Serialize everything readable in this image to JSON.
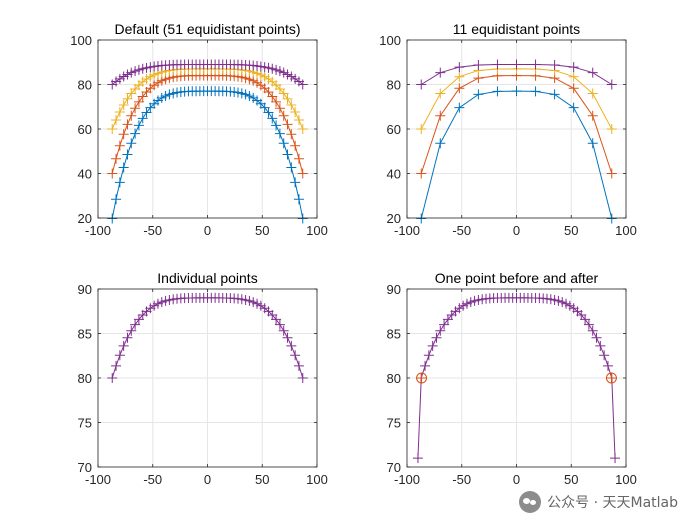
{
  "colors": {
    "blue": "#0072BD",
    "red": "#D95319",
    "yellow": "#EDB120",
    "purple": "#7E2F8E"
  },
  "watermark": {
    "icon": "wechat-icon",
    "text": "公众号 · 天天Matlab"
  },
  "chart_data": [
    {
      "type": "line",
      "title": "Default (51 equidistant points)",
      "xlim": [
        -100,
        100
      ],
      "ylim": [
        20,
        100
      ],
      "xticks": [
        -100,
        -50,
        0,
        50,
        100
      ],
      "yticks": [
        20,
        40,
        60,
        80,
        100
      ],
      "grid": true,
      "marker": "+",
      "curves": [
        {
          "color_key": "blue",
          "peak": 77,
          "bottom": 19.8,
          "halfwidth": 87,
          "points": 51
        },
        {
          "color_key": "red",
          "peak": 84,
          "bottom": 40,
          "halfwidth": 87,
          "points": 51
        },
        {
          "color_key": "yellow",
          "peak": 87,
          "bottom": 60,
          "halfwidth": 87,
          "points": 51
        },
        {
          "color_key": "purple",
          "peak": 89,
          "bottom": 80,
          "halfwidth": 87,
          "points": 51
        }
      ]
    },
    {
      "type": "line",
      "title": "11 equidistant points",
      "xlim": [
        -100,
        100
      ],
      "ylim": [
        20,
        100
      ],
      "xticks": [
        -100,
        -50,
        0,
        50,
        100
      ],
      "yticks": [
        20,
        40,
        60,
        80,
        100
      ],
      "grid": true,
      "marker": "+",
      "curves": [
        {
          "color_key": "blue",
          "peak": 77,
          "bottom": 19.8,
          "halfwidth": 87,
          "points": 11
        },
        {
          "color_key": "red",
          "peak": 84,
          "bottom": 40,
          "halfwidth": 87,
          "points": 11
        },
        {
          "color_key": "yellow",
          "peak": 87,
          "bottom": 60,
          "halfwidth": 87,
          "points": 11
        },
        {
          "color_key": "purple",
          "peak": 89,
          "bottom": 80,
          "halfwidth": 87,
          "points": 11
        }
      ]
    },
    {
      "type": "line",
      "title": "Individual points",
      "xlim": [
        -100,
        100
      ],
      "ylim": [
        70,
        90
      ],
      "xticks": [
        -100,
        -50,
        0,
        50,
        100
      ],
      "yticks": [
        70,
        75,
        80,
        85,
        90
      ],
      "grid": true,
      "marker": "+",
      "curves": [
        {
          "color_key": "purple",
          "peak": 89,
          "bottom": 80,
          "halfwidth": 87,
          "points": 51
        }
      ]
    },
    {
      "type": "line",
      "title": "One point before and after",
      "xlim": [
        -100,
        100
      ],
      "ylim": [
        70,
        90
      ],
      "xticks": [
        -100,
        -50,
        0,
        50,
        100
      ],
      "yticks": [
        70,
        75,
        80,
        85,
        90
      ],
      "grid": true,
      "marker": "+",
      "curves": [
        {
          "color_key": "purple",
          "peak": 89,
          "bottom": 80,
          "halfwidth": 87,
          "points": 51,
          "extra_before": {
            "x": -90,
            "y": 71
          },
          "extra_after": {
            "x": 90,
            "y": 71
          }
        }
      ],
      "circles": [
        {
          "x": -86.7,
          "y": 80,
          "color_key": "red"
        },
        {
          "x": 86.7,
          "y": 80,
          "color_key": "red"
        }
      ]
    }
  ]
}
